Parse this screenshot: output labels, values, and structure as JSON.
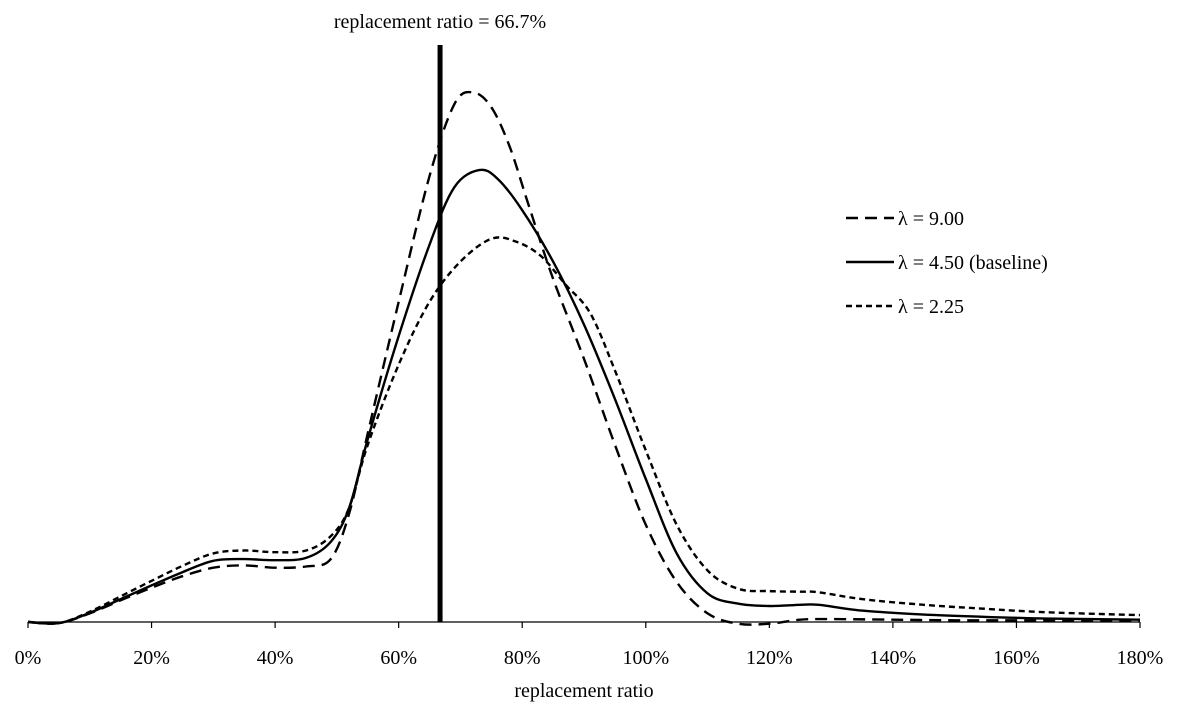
{
  "chart_data": {
    "type": "line",
    "title": "",
    "xlabel": "replacement ratio",
    "ylabel": "",
    "xlim": [
      0,
      180
    ],
    "ylim": [
      0,
      1.0
    ],
    "grid": false,
    "legend_position": "right",
    "x_tick_labels": [
      "0%",
      "20%",
      "40%",
      "60%",
      "80%",
      "100%",
      "120%",
      "140%",
      "160%",
      "180%"
    ],
    "x_tick_values": [
      0,
      20,
      40,
      60,
      80,
      100,
      120,
      140,
      160,
      180
    ],
    "annotation": {
      "text": "replacement ratio = 66.7%",
      "x": 66.7
    },
    "series": [
      {
        "name": "λ = 9.00",
        "dash": "long-dash",
        "points": [
          [
            0,
            0.0
          ],
          [
            5,
            -0.002
          ],
          [
            10,
            0.015
          ],
          [
            15,
            0.038
          ],
          [
            20,
            0.06
          ],
          [
            25,
            0.08
          ],
          [
            30,
            0.095
          ],
          [
            35,
            0.099
          ],
          [
            40,
            0.095
          ],
          [
            45,
            0.097
          ],
          [
            49,
            0.11
          ],
          [
            52,
            0.19
          ],
          [
            55,
            0.33
          ],
          [
            60,
            0.56
          ],
          [
            65,
            0.78
          ],
          [
            69,
            0.905
          ],
          [
            72,
            0.926
          ],
          [
            75,
            0.9
          ],
          [
            78,
            0.83
          ],
          [
            81,
            0.73
          ],
          [
            85,
            0.6
          ],
          [
            90,
            0.46
          ],
          [
            95,
            0.31
          ],
          [
            100,
            0.17
          ],
          [
            105,
            0.07
          ],
          [
            110,
            0.015
          ],
          [
            115,
            -0.003
          ],
          [
            120,
            -0.003
          ],
          [
            125,
            0.004
          ],
          [
            130,
            0.005
          ],
          [
            140,
            0.004
          ],
          [
            150,
            0.003
          ],
          [
            160,
            0.003
          ],
          [
            170,
            0.002
          ],
          [
            180,
            0.002
          ]
        ]
      },
      {
        "name": "λ = 4.50 (baseline)",
        "dash": "solid",
        "points": [
          [
            0,
            0.0
          ],
          [
            5,
            -0.002
          ],
          [
            10,
            0.016
          ],
          [
            15,
            0.04
          ],
          [
            20,
            0.064
          ],
          [
            25,
            0.087
          ],
          [
            30,
            0.107
          ],
          [
            35,
            0.11
          ],
          [
            40,
            0.108
          ],
          [
            45,
            0.112
          ],
          [
            49,
            0.14
          ],
          [
            52,
            0.2
          ],
          [
            55,
            0.32
          ],
          [
            60,
            0.5
          ],
          [
            65,
            0.66
          ],
          [
            69,
            0.76
          ],
          [
            73,
            0.79
          ],
          [
            76,
            0.775
          ],
          [
            80,
            0.72
          ],
          [
            85,
            0.63
          ],
          [
            90,
            0.52
          ],
          [
            95,
            0.39
          ],
          [
            100,
            0.25
          ],
          [
            105,
            0.12
          ],
          [
            110,
            0.05
          ],
          [
            115,
            0.032
          ],
          [
            120,
            0.028
          ],
          [
            125,
            0.03
          ],
          [
            128,
            0.03
          ],
          [
            135,
            0.02
          ],
          [
            145,
            0.013
          ],
          [
            155,
            0.009
          ],
          [
            165,
            0.006
          ],
          [
            180,
            0.004
          ]
        ]
      },
      {
        "name": "λ = 2.25",
        "dash": "short-dash",
        "points": [
          [
            0,
            0.0
          ],
          [
            5,
            -0.002
          ],
          [
            10,
            0.018
          ],
          [
            15,
            0.045
          ],
          [
            20,
            0.072
          ],
          [
            25,
            0.098
          ],
          [
            30,
            0.12
          ],
          [
            35,
            0.125
          ],
          [
            40,
            0.122
          ],
          [
            45,
            0.125
          ],
          [
            49,
            0.15
          ],
          [
            52,
            0.2
          ],
          [
            55,
            0.31
          ],
          [
            60,
            0.45
          ],
          [
            65,
            0.56
          ],
          [
            70,
            0.63
          ],
          [
            75,
            0.67
          ],
          [
            79,
            0.665
          ],
          [
            83,
            0.64
          ],
          [
            87,
            0.59
          ],
          [
            91,
            0.54
          ],
          [
            95,
            0.44
          ],
          [
            100,
            0.3
          ],
          [
            105,
            0.17
          ],
          [
            110,
            0.09
          ],
          [
            115,
            0.058
          ],
          [
            120,
            0.054
          ],
          [
            125,
            0.053
          ],
          [
            128,
            0.052
          ],
          [
            135,
            0.04
          ],
          [
            145,
            0.03
          ],
          [
            155,
            0.023
          ],
          [
            165,
            0.017
          ],
          [
            180,
            0.012
          ]
        ]
      }
    ]
  }
}
